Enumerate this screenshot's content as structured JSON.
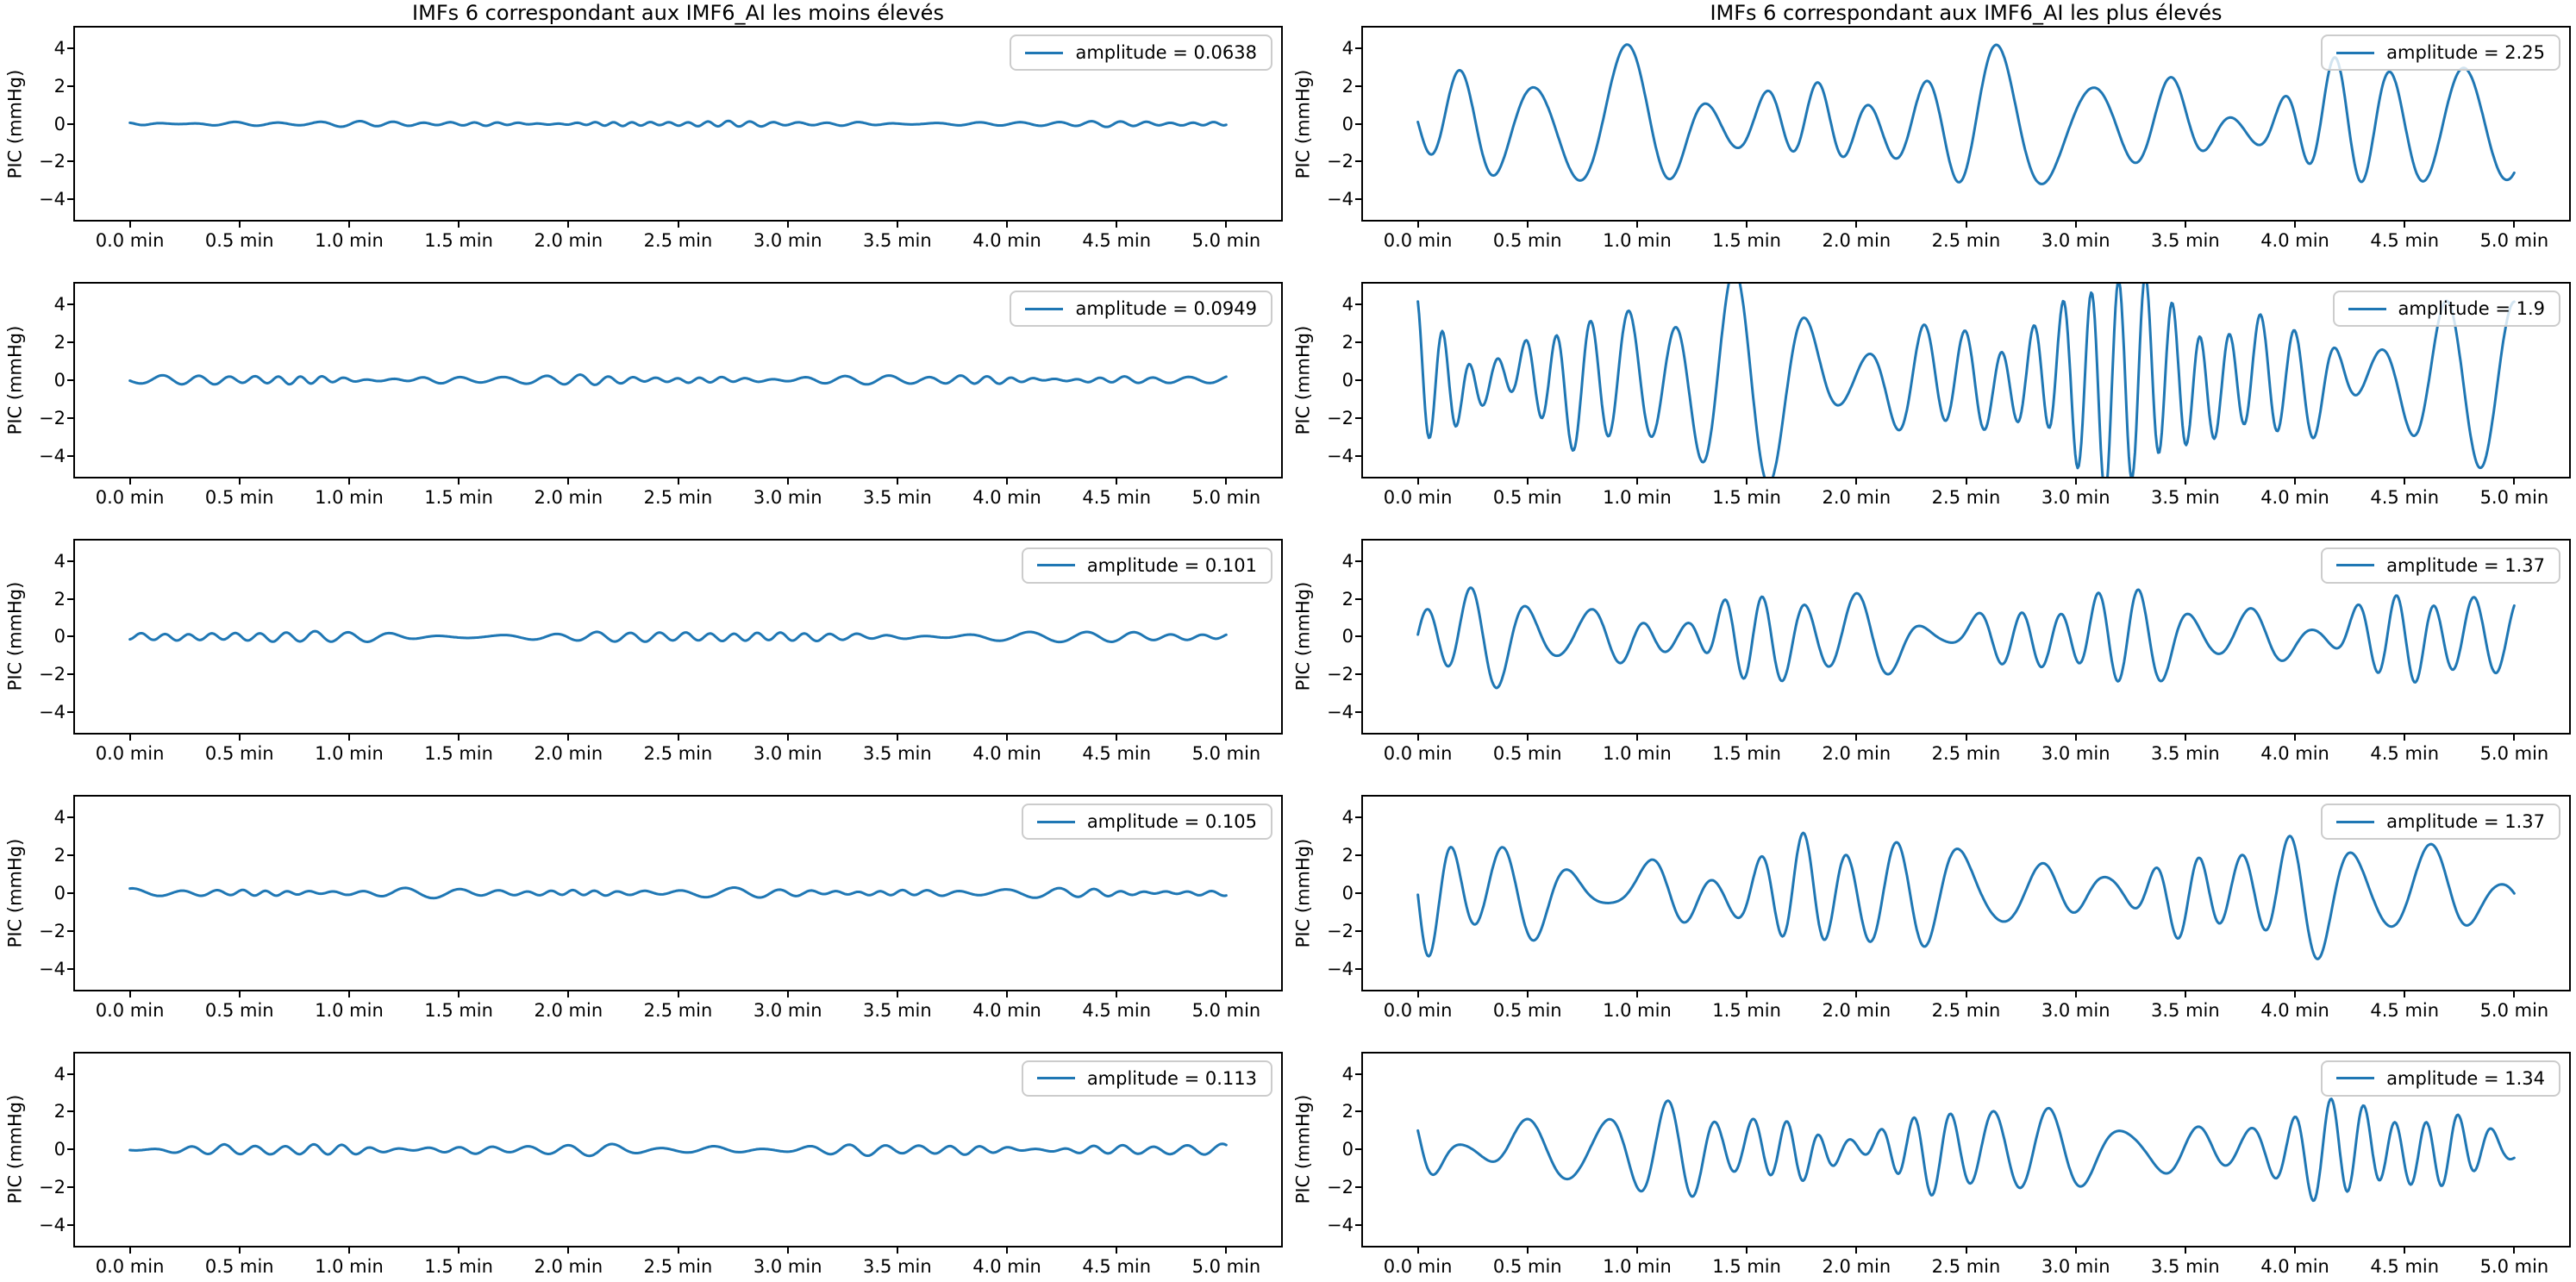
{
  "figure": {
    "background": "#ffffff",
    "line_color": "#1f77b4",
    "axis_color": "#000000",
    "legend_border_color": "#cccccc",
    "ylabel": "PIC (mmHg)",
    "y_tick_labels": [
      "4",
      "2",
      "0",
      "−2",
      "−4"
    ],
    "x_tick_labels": [
      "0.0 min",
      "0.5 min",
      "1.0 min",
      "1.5 min",
      "2.0 min",
      "2.5 min",
      "3.0 min",
      "3.5 min",
      "4.0 min",
      "4.5 min",
      "5.0 min"
    ],
    "columns": [
      {
        "title": "IMFs 6 correspondant aux IMF6_AI les moins élevés"
      },
      {
        "title": "IMFs 6 correspondant aux IMF6_AI les plus élevés"
      }
    ]
  },
  "chart_data": [
    {
      "type": "line",
      "title": "IMFs 6 correspondant aux IMF6_AI les moins élevés",
      "xlabel": "",
      "ylabel": "PIC (mmHg)",
      "x_unit": "min",
      "xlim": [
        -0.25,
        5.25
      ],
      "ylim": [
        -5.1,
        5.1
      ],
      "x_ticks": [
        0,
        0.5,
        1,
        1.5,
        2,
        2.5,
        3,
        3.5,
        4,
        4.5,
        5
      ],
      "y_ticks": [
        4,
        2,
        0,
        -2,
        -4
      ],
      "legend": "amplitude = 0.0638",
      "amplitude": 0.0638,
      "legend_position": "upper right",
      "grid": false,
      "waveform": {
        "seed": 101,
        "peak": 0.16,
        "freq_per_min": 8.5
      }
    },
    {
      "type": "line",
      "title": "IMFs 6 correspondant aux IMF6_AI les plus élevés",
      "xlabel": "",
      "ylabel": "PIC (mmHg)",
      "x_unit": "min",
      "xlim": [
        -0.25,
        5.25
      ],
      "ylim": [
        -5.1,
        5.1
      ],
      "x_ticks": [
        0,
        0.5,
        1,
        1.5,
        2,
        2.5,
        3,
        3.5,
        4,
        4.5,
        5
      ],
      "y_ticks": [
        4,
        2,
        0,
        -2,
        -4
      ],
      "legend": "amplitude = 2.25",
      "amplitude": 2.25,
      "legend_position": "upper right",
      "grid": false,
      "waveform": {
        "seed": 201,
        "peak": 4.2,
        "freq_per_min": 3.3
      }
    },
    {
      "type": "line",
      "title": "",
      "xlabel": "",
      "ylabel": "PIC (mmHg)",
      "x_unit": "min",
      "xlim": [
        -0.25,
        5.25
      ],
      "ylim": [
        -5.1,
        5.1
      ],
      "x_ticks": [
        0,
        0.5,
        1,
        1.5,
        2,
        2.5,
        3,
        3.5,
        4,
        4.5,
        5
      ],
      "y_ticks": [
        4,
        2,
        0,
        -2,
        -4
      ],
      "legend": "amplitude = 0.0949",
      "amplitude": 0.0949,
      "legend_position": "upper right",
      "grid": false,
      "waveform": {
        "seed": 102,
        "peak": 0.28,
        "freq_per_min": 7.5
      }
    },
    {
      "type": "line",
      "title": "",
      "xlabel": "",
      "ylabel": "PIC (mmHg)",
      "x_unit": "min",
      "xlim": [
        -0.25,
        5.25
      ],
      "ylim": [
        -5.1,
        5.1
      ],
      "x_ticks": [
        0,
        0.5,
        1,
        1.5,
        2,
        2.5,
        3,
        3.5,
        4,
        4.5,
        5
      ],
      "y_ticks": [
        4,
        2,
        0,
        -2,
        -4
      ],
      "legend": "amplitude = 1.9",
      "amplitude": 1.9,
      "legend_position": "upper right",
      "grid": false,
      "waveform": {
        "seed": 202,
        "peak": 6.0,
        "freq_per_min": 5.6
      }
    },
    {
      "type": "line",
      "title": "",
      "xlabel": "",
      "ylabel": "PIC (mmHg)",
      "x_unit": "min",
      "xlim": [
        -0.25,
        5.25
      ],
      "ylim": [
        -5.1,
        5.1
      ],
      "x_ticks": [
        0,
        0.5,
        1,
        1.5,
        2,
        2.5,
        3,
        3.5,
        4,
        4.5,
        5
      ],
      "y_ticks": [
        4,
        2,
        0,
        -2,
        -4
      ],
      "legend": "amplitude = 0.101",
      "amplitude": 0.101,
      "legend_position": "upper right",
      "grid": false,
      "waveform": {
        "seed": 103,
        "peak": 0.3,
        "freq_per_min": 6.5
      }
    },
    {
      "type": "line",
      "title": "",
      "xlabel": "",
      "ylabel": "PIC (mmHg)",
      "x_unit": "min",
      "xlim": [
        -0.25,
        5.25
      ],
      "ylim": [
        -5.1,
        5.1
      ],
      "x_ticks": [
        0,
        0.5,
        1,
        1.5,
        2,
        2.5,
        3,
        3.5,
        4,
        4.5,
        5
      ],
      "y_ticks": [
        4,
        2,
        0,
        -2,
        -4
      ],
      "legend": "amplitude = 1.37",
      "amplitude": 1.37,
      "legend_position": "upper right",
      "grid": false,
      "waveform": {
        "seed": 203,
        "peak": 2.7,
        "freq_per_min": 4.6
      }
    },
    {
      "type": "line",
      "title": "",
      "xlabel": "",
      "ylabel": "PIC (mmHg)",
      "x_unit": "min",
      "xlim": [
        -0.25,
        5.25
      ],
      "ylim": [
        -5.1,
        5.1
      ],
      "x_ticks": [
        0,
        0.5,
        1,
        1.5,
        2,
        2.5,
        3,
        3.5,
        4,
        4.5,
        5
      ],
      "y_ticks": [
        4,
        2,
        0,
        -2,
        -4
      ],
      "legend": "amplitude = 0.105",
      "amplitude": 0.105,
      "legend_position": "upper right",
      "grid": false,
      "waveform": {
        "seed": 104,
        "peak": 0.28,
        "freq_per_min": 7.0
      }
    },
    {
      "type": "line",
      "title": "",
      "xlabel": "",
      "ylabel": "PIC (mmHg)",
      "x_unit": "min",
      "xlim": [
        -0.25,
        5.25
      ],
      "ylim": [
        -5.1,
        5.1
      ],
      "x_ticks": [
        0,
        0.5,
        1,
        1.5,
        2,
        2.5,
        3,
        3.5,
        4,
        4.5,
        5
      ],
      "y_ticks": [
        4,
        2,
        0,
        -2,
        -4
      ],
      "legend": "amplitude = 1.37",
      "amplitude": 1.37,
      "legend_position": "upper right",
      "grid": false,
      "waveform": {
        "seed": 204,
        "peak": 3.5,
        "freq_per_min": 3.9
      }
    },
    {
      "type": "line",
      "title": "",
      "xlabel": "",
      "ylabel": "PIC (mmHg)",
      "x_unit": "min",
      "xlim": [
        -0.25,
        5.25
      ],
      "ylim": [
        -5.1,
        5.1
      ],
      "x_ticks": [
        0,
        0.5,
        1,
        1.5,
        2,
        2.5,
        3,
        3.5,
        4,
        4.5,
        5
      ],
      "y_ticks": [
        4,
        2,
        0,
        -2,
        -4
      ],
      "legend": "amplitude = 0.113",
      "amplitude": 0.113,
      "legend_position": "upper right",
      "grid": false,
      "waveform": {
        "seed": 105,
        "peak": 0.32,
        "freq_per_min": 6.0
      }
    },
    {
      "type": "line",
      "title": "",
      "xlabel": "",
      "ylabel": "PIC (mmHg)",
      "x_unit": "min",
      "xlim": [
        -0.25,
        5.25
      ],
      "ylim": [
        -5.1,
        5.1
      ],
      "x_ticks": [
        0,
        0.5,
        1,
        1.5,
        2,
        2.5,
        3,
        3.5,
        4,
        4.5,
        5
      ],
      "y_ticks": [
        4,
        2,
        0,
        -2,
        -4
      ],
      "legend": "amplitude = 1.34",
      "amplitude": 1.34,
      "legend_position": "upper right",
      "grid": false,
      "waveform": {
        "seed": 205,
        "peak": 2.7,
        "freq_per_min": 4.9
      }
    }
  ]
}
